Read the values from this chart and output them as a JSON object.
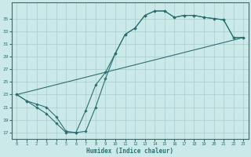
{
  "xlabel": "Humidex (Indice chaleur)",
  "bg_color": "#cce9e9",
  "line_color": "#2a7070",
  "grid_color": "#a8cccc",
  "line1_x": [
    0,
    1,
    2,
    3,
    4,
    5,
    6,
    7,
    8,
    9,
    10,
    11,
    12,
    13,
    14,
    15,
    16,
    17,
    18,
    19,
    20,
    21,
    22,
    23
  ],
  "line1_y": [
    23,
    22,
    21.5,
    21,
    19.5,
    17.2,
    17.0,
    20.5,
    24.5,
    26.5,
    29.5,
    32.5,
    33.5,
    35.5,
    36.2,
    36.2,
    35.2,
    35.5,
    35.5,
    35.2,
    35.0,
    34.8,
    32.0,
    32.0
  ],
  "line2_x": [
    0,
    1,
    2,
    3,
    4,
    5,
    6,
    7,
    8,
    9,
    10,
    11,
    12,
    13,
    14,
    15,
    16,
    17,
    18,
    19,
    20,
    21,
    22,
    23
  ],
  "line2_y": [
    23,
    22,
    21.0,
    20.0,
    18.5,
    17.0,
    17.0,
    17.2,
    21.0,
    25.5,
    29.5,
    32.5,
    33.5,
    35.5,
    36.2,
    36.2,
    35.2,
    35.5,
    35.5,
    35.2,
    35.0,
    34.8,
    32.0,
    32.0
  ],
  "line3_x": [
    0,
    23
  ],
  "line3_y": [
    23,
    32.0
  ],
  "yticks": [
    17,
    19,
    21,
    23,
    25,
    27,
    29,
    31,
    33,
    35
  ],
  "xticks": [
    0,
    1,
    2,
    3,
    4,
    5,
    6,
    7,
    8,
    9,
    10,
    11,
    12,
    13,
    14,
    15,
    16,
    17,
    18,
    19,
    20,
    21,
    22,
    23
  ],
  "ylim": [
    16.0,
    37.5
  ],
  "xlim": [
    -0.5,
    23.5
  ]
}
